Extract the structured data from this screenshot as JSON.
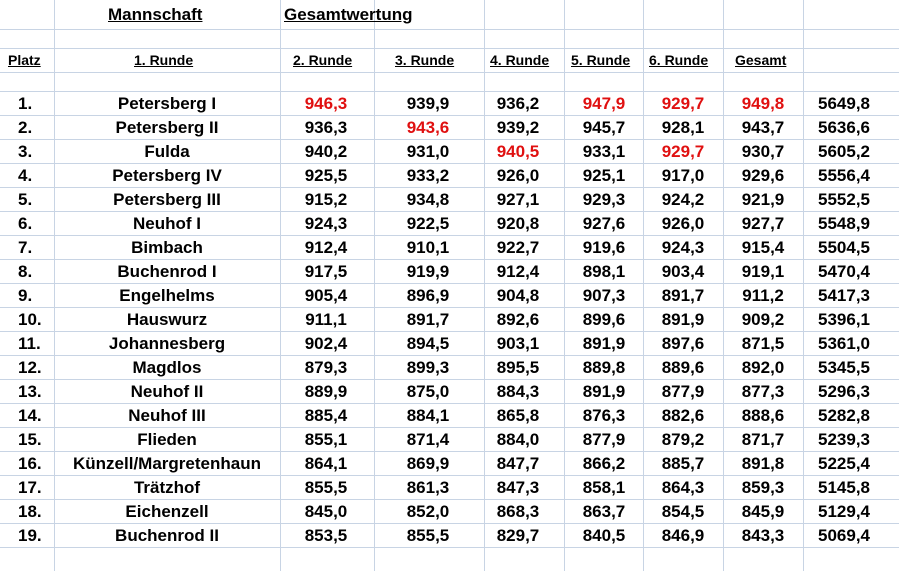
{
  "title_row": {
    "mannschaft": "Mannschaft",
    "gesamtwertung": "Gesamtwertung"
  },
  "headers": {
    "platz": "Platz",
    "r1": "1. Runde",
    "r2": "2. Runde",
    "r3": "3. Runde",
    "r4": "4. Runde",
    "r5": "5. Runde",
    "r6": "6. Runde",
    "gesamt": "Gesamt"
  },
  "highlight_color": "#e01010",
  "rows": [
    {
      "platz": "1.",
      "team": "Petersberg I",
      "v": [
        "946,3",
        "939,9",
        "936,2",
        "947,9",
        "929,7",
        "949,8",
        "5649,8"
      ],
      "red": [
        0,
        3,
        4,
        5
      ]
    },
    {
      "platz": "2.",
      "team": "Petersberg II",
      "v": [
        "936,3",
        "943,6",
        "939,2",
        "945,7",
        "928,1",
        "943,7",
        "5636,6"
      ],
      "red": [
        1
      ]
    },
    {
      "platz": "3.",
      "team": "Fulda",
      "v": [
        "940,2",
        "931,0",
        "940,5",
        "933,1",
        "929,7",
        "930,7",
        "5605,2"
      ],
      "red": [
        2,
        4
      ]
    },
    {
      "platz": "4.",
      "team": "Petersberg IV",
      "v": [
        "925,5",
        "933,2",
        "926,0",
        "925,1",
        "917,0",
        "929,6",
        "5556,4"
      ],
      "red": []
    },
    {
      "platz": "5.",
      "team": "Petersberg III",
      "v": [
        "915,2",
        "934,8",
        "927,1",
        "929,3",
        "924,2",
        "921,9",
        "5552,5"
      ],
      "red": []
    },
    {
      "platz": "6.",
      "team": "Neuhof I",
      "v": [
        "924,3",
        "922,5",
        "920,8",
        "927,6",
        "926,0",
        "927,7",
        "5548,9"
      ],
      "red": []
    },
    {
      "platz": "7.",
      "team": "Bimbach",
      "v": [
        "912,4",
        "910,1",
        "922,7",
        "919,6",
        "924,3",
        "915,4",
        "5504,5"
      ],
      "red": []
    },
    {
      "platz": "8.",
      "team": "Buchenrod I",
      "v": [
        "917,5",
        "919,9",
        "912,4",
        "898,1",
        "903,4",
        "919,1",
        "5470,4"
      ],
      "red": []
    },
    {
      "platz": "9.",
      "team": "Engelhelms",
      "v": [
        "905,4",
        "896,9",
        "904,8",
        "907,3",
        "891,7",
        "911,2",
        "5417,3"
      ],
      "red": []
    },
    {
      "platz": "10.",
      "team": "Hauswurz",
      "v": [
        "911,1",
        "891,7",
        "892,6",
        "899,6",
        "891,9",
        "909,2",
        "5396,1"
      ],
      "red": []
    },
    {
      "platz": "11.",
      "team": "Johannesberg",
      "v": [
        "902,4",
        "894,5",
        "903,1",
        "891,9",
        "897,6",
        "871,5",
        "5361,0"
      ],
      "red": []
    },
    {
      "platz": "12.",
      "team": "Magdlos",
      "v": [
        "879,3",
        "899,3",
        "895,5",
        "889,8",
        "889,6",
        "892,0",
        "5345,5"
      ],
      "red": []
    },
    {
      "platz": "13.",
      "team": "Neuhof II",
      "v": [
        "889,9",
        "875,0",
        "884,3",
        "891,9",
        "877,9",
        "877,3",
        "5296,3"
      ],
      "red": []
    },
    {
      "platz": "14.",
      "team": "Neuhof III",
      "v": [
        "885,4",
        "884,1",
        "865,8",
        "876,3",
        "882,6",
        "888,6",
        "5282,8"
      ],
      "red": []
    },
    {
      "platz": "15.",
      "team": "Flieden",
      "v": [
        "855,1",
        "871,4",
        "884,0",
        "877,9",
        "879,2",
        "871,7",
        "5239,3"
      ],
      "red": []
    },
    {
      "platz": "16.",
      "team": "Künzell/Margretenhaun",
      "v": [
        "864,1",
        "869,9",
        "847,7",
        "866,2",
        "885,7",
        "891,8",
        "5225,4"
      ],
      "red": []
    },
    {
      "platz": "17.",
      "team": "Trätzhof",
      "v": [
        "855,5",
        "861,3",
        "847,3",
        "858,1",
        "864,3",
        "859,3",
        "5145,8"
      ],
      "red": []
    },
    {
      "platz": "18.",
      "team": "Eichenzell",
      "v": [
        "845,0",
        "852,0",
        "868,3",
        "863,7",
        "854,5",
        "845,9",
        "5129,4"
      ],
      "red": []
    },
    {
      "platz": "19.",
      "team": "Buchenrod II",
      "v": [
        "853,5",
        "855,5",
        "829,7",
        "840,5",
        "846,9",
        "843,3",
        "5069,4"
      ],
      "red": []
    }
  ]
}
